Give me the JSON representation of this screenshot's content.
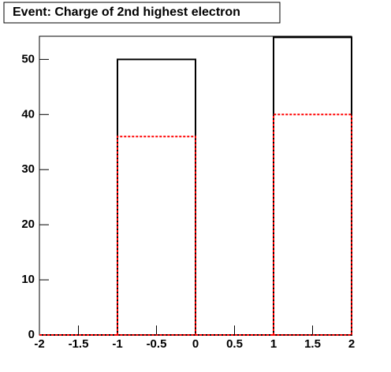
{
  "chart_data": {
    "type": "histogram",
    "title": "Event: Charge of 2nd highest electron",
    "bins": [
      -2,
      -1,
      0,
      1,
      2
    ],
    "series": [
      {
        "color": "#000000",
        "values": [
          0,
          50,
          0,
          54
        ]
      },
      {
        "color": "#ff0000",
        "values": [
          0,
          36,
          0,
          40
        ],
        "dashed": true
      }
    ],
    "xlim": [
      -2,
      2
    ],
    "xticks": [
      -2,
      -1.5,
      -1,
      -0.5,
      0,
      0.5,
      1,
      1.5,
      2
    ],
    "ylim": [
      0,
      54.2
    ],
    "yticks": [
      0,
      10,
      20,
      30,
      40,
      50
    ]
  }
}
